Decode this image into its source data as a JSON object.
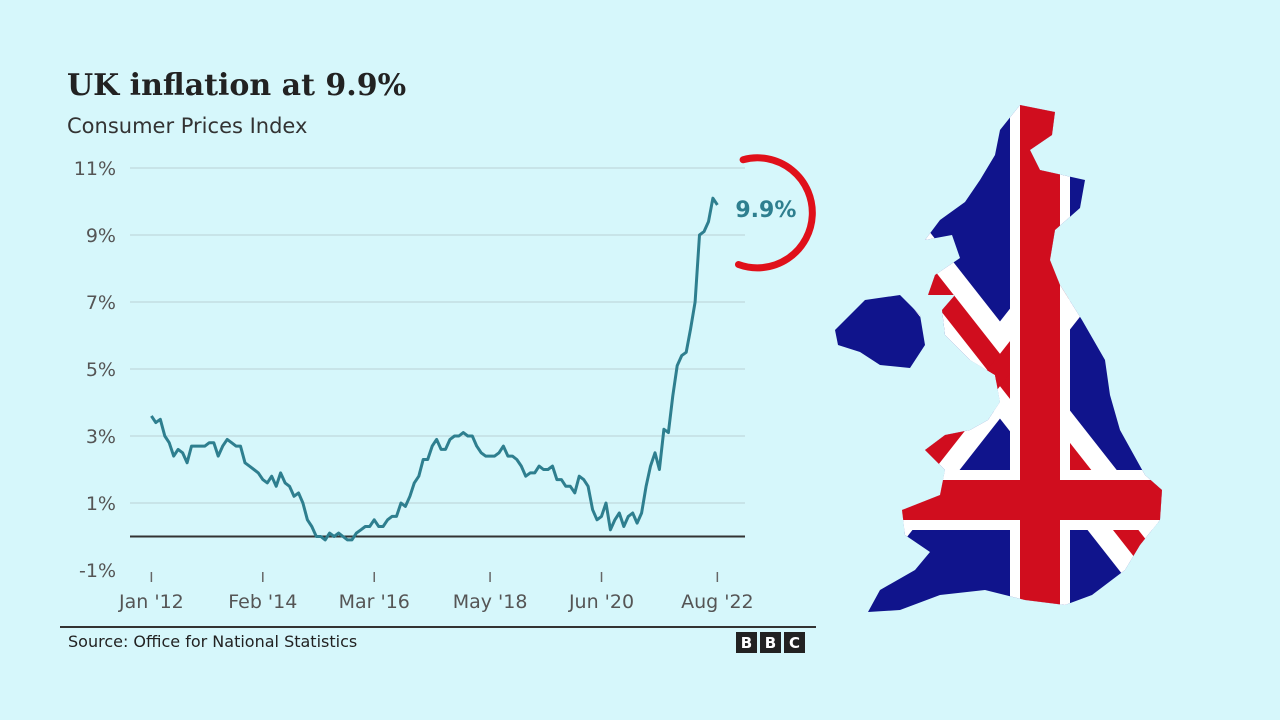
{
  "colors": {
    "background": "#d6f7fb",
    "line": "#2e7f8f",
    "accent": "#e0101a",
    "flag_blue": "#10148c",
    "flag_red": "#d00d1e"
  },
  "map_icon": "uk-flag-map",
  "logo_icon": "bbc-logo",
  "source": "Source: Office for National Statistics",
  "logo_letters": [
    "B",
    "B",
    "C"
  ],
  "chart_data": {
    "type": "line",
    "title": "UK inflation at 9.9%",
    "subtitle": "Consumer Prices Index",
    "xlabel": "",
    "ylabel": "",
    "ylim": [
      -1,
      11
    ],
    "yticks": [
      -1,
      1,
      3,
      5,
      7,
      9,
      11
    ],
    "ytick_labels": [
      "-1%",
      "1%",
      "3%",
      "5%",
      "7%",
      "9%",
      "11%"
    ],
    "xticks": [
      2012.0,
      2014.083,
      2016.167,
      2018.333,
      2020.417,
      2022.583
    ],
    "xtick_labels": [
      "Jan '12",
      "Feb '14",
      "Mar '16",
      "May '18",
      "Jun '20",
      "Aug '22"
    ],
    "xlim": [
      2011.6,
      2023.1
    ],
    "zero_line": 0,
    "grid": true,
    "annotation": "9.9%",
    "series": [
      {
        "x": [
          2012.0,
          2012.083,
          2012.167,
          2012.25,
          2012.333,
          2012.417,
          2012.5,
          2012.583,
          2012.667,
          2012.75,
          2012.833,
          2012.917,
          2013.0,
          2013.083,
          2013.167,
          2013.25,
          2013.333,
          2013.417,
          2013.5,
          2013.583,
          2013.667,
          2013.75,
          2013.833,
          2013.917,
          2014.0,
          2014.083,
          2014.167,
          2014.25,
          2014.333,
          2014.417,
          2014.5,
          2014.583,
          2014.667,
          2014.75,
          2014.833,
          2014.917,
          2015.0,
          2015.083,
          2015.167,
          2015.25,
          2015.333,
          2015.417,
          2015.5,
          2015.583,
          2015.667,
          2015.75,
          2015.833,
          2015.917,
          2016.0,
          2016.083,
          2016.167,
          2016.25,
          2016.333,
          2016.417,
          2016.5,
          2016.583,
          2016.667,
          2016.75,
          2016.833,
          2016.917,
          2017.0,
          2017.083,
          2017.167,
          2017.25,
          2017.333,
          2017.417,
          2017.5,
          2017.583,
          2017.667,
          2017.75,
          2017.833,
          2017.917,
          2018.0,
          2018.083,
          2018.167,
          2018.25,
          2018.333,
          2018.417,
          2018.5,
          2018.583,
          2018.667,
          2018.75,
          2018.833,
          2018.917,
          2019.0,
          2019.083,
          2019.167,
          2019.25,
          2019.333,
          2019.417,
          2019.5,
          2019.583,
          2019.667,
          2019.75,
          2019.833,
          2019.917,
          2020.0,
          2020.083,
          2020.167,
          2020.25,
          2020.333,
          2020.417,
          2020.5,
          2020.583,
          2020.667,
          2020.75,
          2020.833,
          2020.917,
          2021.0,
          2021.083,
          2021.167,
          2021.25,
          2021.333,
          2021.417,
          2021.5,
          2021.583,
          2021.667,
          2021.75,
          2021.833,
          2021.917,
          2022.0,
          2022.083,
          2022.167,
          2022.25,
          2022.333,
          2022.417,
          2022.5,
          2022.583
        ],
        "values": [
          3.6,
          3.4,
          3.5,
          3.0,
          2.8,
          2.4,
          2.6,
          2.5,
          2.2,
          2.7,
          2.7,
          2.7,
          2.7,
          2.8,
          2.8,
          2.4,
          2.7,
          2.9,
          2.8,
          2.7,
          2.7,
          2.2,
          2.1,
          2.0,
          1.9,
          1.7,
          1.6,
          1.8,
          1.5,
          1.9,
          1.6,
          1.5,
          1.2,
          1.3,
          1.0,
          0.5,
          0.3,
          0.0,
          0.0,
          -0.1,
          0.1,
          0.0,
          0.1,
          0.0,
          -0.1,
          -0.1,
          0.1,
          0.2,
          0.3,
          0.3,
          0.5,
          0.3,
          0.3,
          0.5,
          0.6,
          0.6,
          1.0,
          0.9,
          1.2,
          1.6,
          1.8,
          2.3,
          2.3,
          2.7,
          2.9,
          2.6,
          2.6,
          2.9,
          3.0,
          3.0,
          3.1,
          3.0,
          3.0,
          2.7,
          2.5,
          2.4,
          2.4,
          2.4,
          2.5,
          2.7,
          2.4,
          2.4,
          2.3,
          2.1,
          1.8,
          1.9,
          1.9,
          2.1,
          2.0,
          2.0,
          2.1,
          1.7,
          1.7,
          1.5,
          1.5,
          1.3,
          1.8,
          1.7,
          1.5,
          0.8,
          0.5,
          0.6,
          1.0,
          0.2,
          0.5,
          0.7,
          0.3,
          0.6,
          0.7,
          0.4,
          0.7,
          1.5,
          2.1,
          2.5,
          2.0,
          3.2,
          3.1,
          4.2,
          5.1,
          5.4,
          5.5,
          6.2,
          7.0,
          9.0,
          9.1,
          9.4,
          10.1,
          9.9
        ]
      }
    ]
  }
}
